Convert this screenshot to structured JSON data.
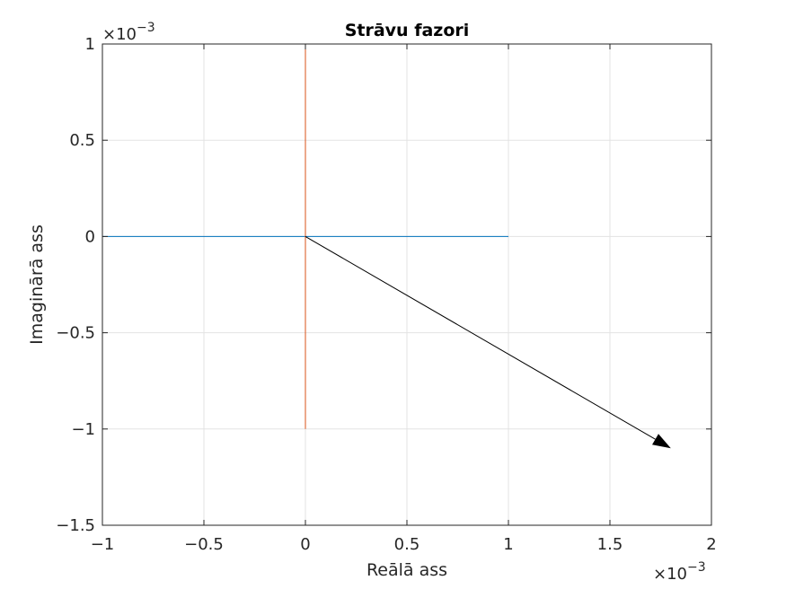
{
  "chart_data": {
    "type": "line",
    "title": "Strāvu fazori",
    "xlabel": "Reālā ass",
    "ylabel": "Imaginārā ass",
    "xlim": [
      -1,
      2
    ],
    "ylim": [
      -1.5,
      1
    ],
    "x_exponent": "×10",
    "x_exponent_power": "−3",
    "y_exponent": "×10",
    "y_exponent_power": "−3",
    "xticks": [
      -1,
      -0.5,
      0,
      0.5,
      1,
      1.5,
      2
    ],
    "yticks": [
      -1.5,
      -1,
      -0.5,
      0,
      0.5,
      1
    ],
    "xtick_labels": [
      "−1",
      "−0.5",
      "0",
      "0.5",
      "1",
      "1.5",
      "2"
    ],
    "ytick_labels": [
      "−1.5",
      "−1",
      "−0.5",
      "0",
      "0.5",
      "1"
    ],
    "grid": true,
    "series": [
      {
        "x": [
          -1,
          1
        ],
        "y": [
          0,
          0
        ],
        "color": "#0072BD"
      },
      {
        "x": [
          0,
          0
        ],
        "y": [
          -1,
          1
        ],
        "color": "#D95319"
      },
      {
        "x": [
          0,
          1.8
        ],
        "y": [
          0,
          -1.1
        ],
        "color": "#000000",
        "arrow": true
      }
    ]
  }
}
